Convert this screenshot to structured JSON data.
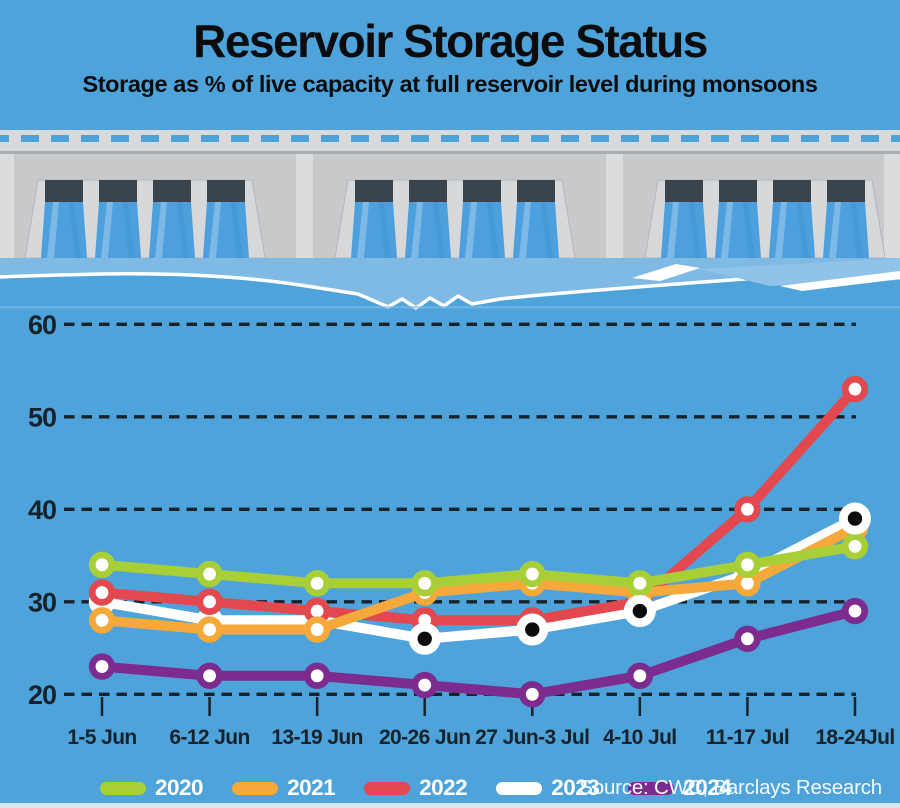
{
  "header": {
    "title": "Reservoir Storage Status",
    "subtitle": "Storage as % of live capacity at full reservoir level during monsoons"
  },
  "footer": {
    "source": "Source: CWC, Barclays Research"
  },
  "colors": {
    "background": "#4DA3DA",
    "axis_text": "#18222B",
    "gridline": "#18222B",
    "legend_text": "#FFFFFF",
    "source_text": "#F4FAFF"
  },
  "chart_data": {
    "type": "line",
    "title": "Reservoir Storage Status",
    "subtitle": "Storage as % of live capacity at full reservoir level during monsoons",
    "categories": [
      "1-5 Jun",
      "6-12 Jun",
      "13-19 Jun",
      "20-26 Jun",
      "27 Jun-3 Jul",
      "4-10 Jul",
      "11-17 Jul",
      "18-24Jul"
    ],
    "series": [
      {
        "name": "2020",
        "color": "#A9CF38",
        "values": [
          34,
          33,
          32,
          32,
          33,
          32,
          34,
          36
        ]
      },
      {
        "name": "2021",
        "color": "#F6A93B",
        "values": [
          28,
          27,
          27,
          31,
          32,
          31,
          32,
          38
        ]
      },
      {
        "name": "2022",
        "color": "#E2484D",
        "values": [
          31,
          30,
          29,
          28,
          28,
          30,
          40,
          53
        ]
      },
      {
        "name": "2023",
        "color": "#FFFFFF",
        "values": [
          30,
          28,
          28,
          26,
          27,
          29,
          33,
          39
        ],
        "black_center_marker_indices": [
          3,
          4,
          5,
          7
        ]
      },
      {
        "name": "2024",
        "color": "#7C2B8F",
        "values": [
          23,
          22,
          22,
          21,
          20,
          22,
          26,
          29
        ]
      }
    ],
    "draw_order": [
      "2023",
      "2022",
      "2021",
      "2020",
      "2024"
    ],
    "ylabel": "",
    "xlabel": "",
    "ylim": [
      20,
      60
    ],
    "yticks": [
      20,
      30,
      40,
      50,
      60
    ],
    "grid": "dashed-horizontal",
    "legend_position": "bottom"
  },
  "legend": {
    "items": [
      {
        "label": "2020",
        "color": "#A9CF38"
      },
      {
        "label": "2021",
        "color": "#F6A93B"
      },
      {
        "label": "2022",
        "color": "#E2484D"
      },
      {
        "label": "2023",
        "color": "#FFFFFF"
      },
      {
        "label": "2024",
        "color": "#7C2B8F"
      }
    ]
  }
}
